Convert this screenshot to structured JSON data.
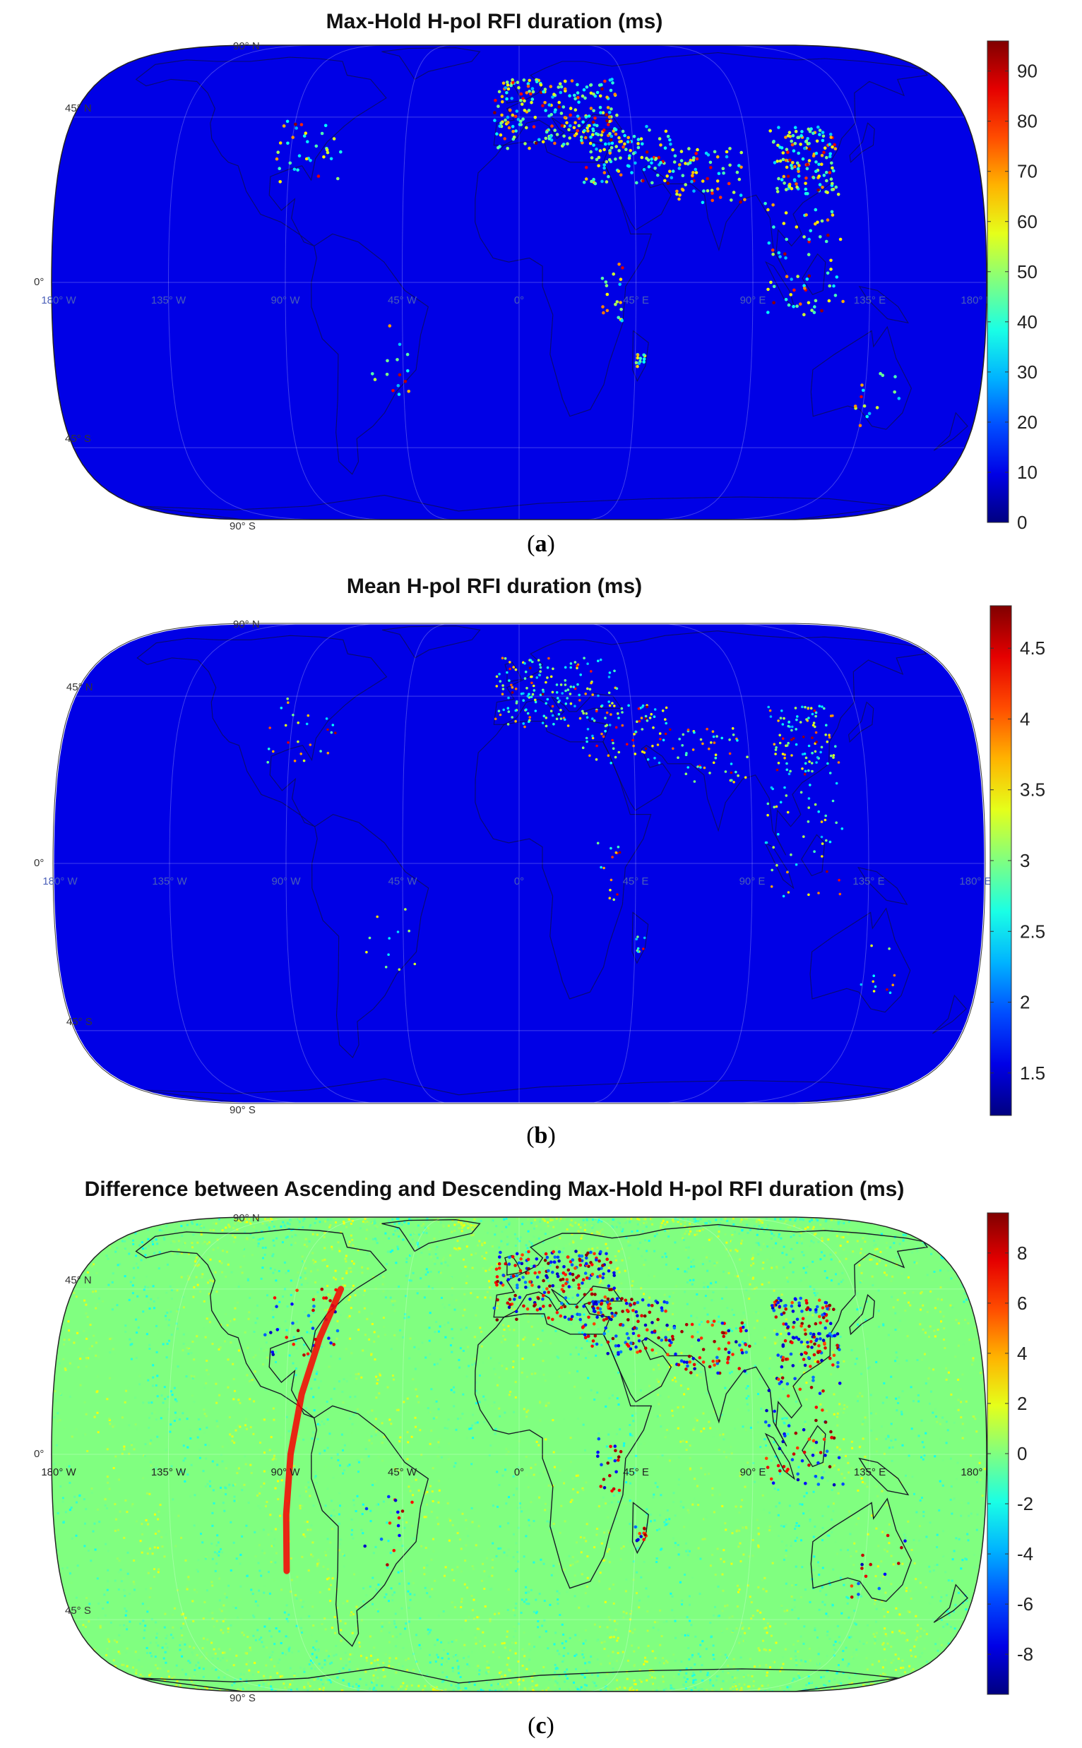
{
  "panels": [
    {
      "title": "Max-Hold H-pol RFI duration (ms)",
      "caption_letter": "a",
      "colormap": "jet",
      "colorbar": {
        "min": 0,
        "max": 96,
        "ticks": [
          "0",
          "10",
          "20",
          "30",
          "40",
          "50",
          "60",
          "70",
          "80",
          "90"
        ],
        "tick_values": [
          0,
          10,
          20,
          30,
          40,
          50,
          60,
          70,
          80,
          90
        ]
      },
      "lat_labels": [
        "90° N",
        "45° N",
        "0°",
        "45° S",
        "90° S"
      ],
      "lon_labels": [
        "180° W",
        "135° W",
        "90° W",
        "45° W",
        "0°",
        "45° E",
        "90° E",
        "135° E",
        "180° E"
      ]
    },
    {
      "title": "Mean H-pol RFI duration (ms)",
      "caption_letter": "b",
      "colormap": "jet",
      "colorbar": {
        "min": 1.2,
        "max": 4.8,
        "ticks": [
          "1.5",
          "2",
          "2.5",
          "3",
          "3.5",
          "4",
          "4.5"
        ],
        "tick_values": [
          1.5,
          2,
          2.5,
          3,
          3.5,
          4,
          4.5
        ]
      },
      "lat_labels": [
        "90° N",
        "45° N",
        "0°",
        "45° S",
        "90° S"
      ],
      "lon_labels": [
        "180° W",
        "135° W",
        "90° W",
        "45° W",
        "0°",
        "45° E",
        "90° E",
        "135° E",
        "180° E"
      ]
    },
    {
      "title": "Difference between Ascending and Descending Max-Hold H-pol RFI duration (ms)",
      "caption_letter": "c",
      "colormap": "jet",
      "colorbar": {
        "min": -9.6,
        "max": 9.6,
        "ticks": [
          "8",
          "6",
          "4",
          "2",
          "0",
          "-2",
          "-4",
          "-6",
          "-8"
        ],
        "tick_values": [
          8,
          6,
          4,
          2,
          0,
          -2,
          -4,
          -6,
          -8
        ]
      },
      "lat_labels": [
        "90° N",
        "45° N",
        "0°",
        "45° S",
        "90° S"
      ],
      "lon_labels": [
        "180° W",
        "135° W",
        "90° W",
        "45° W",
        "0°",
        "45° E",
        "90° E",
        "135° E",
        "180° E"
      ]
    }
  ],
  "chart_data": [
    {
      "type": "heatmap",
      "title": "Max-Hold H-pol RFI duration (ms)",
      "projection": "Robinson world map",
      "colorbar_range": [
        0,
        96
      ],
      "colorbar_ticks": [
        0,
        10,
        20,
        30,
        40,
        50,
        60,
        70,
        80,
        90
      ],
      "background_value": 0,
      "hotspots": [
        "Europe",
        "Middle East",
        "South Asia",
        "East Asia",
        "Southeast Asia",
        "Madagascar"
      ]
    },
    {
      "type": "heatmap",
      "title": "Mean H-pol RFI duration (ms)",
      "projection": "Robinson world map",
      "colorbar_range": [
        1.2,
        4.8
      ],
      "colorbar_ticks": [
        1.5,
        2,
        2.5,
        3,
        3.5,
        4,
        4.5
      ],
      "background_value": 1.2,
      "hotspots": [
        "Europe",
        "Middle East",
        "East Asia",
        "Southeast Asia"
      ]
    },
    {
      "type": "heatmap",
      "title": "Difference between Ascending and Descending Max-Hold H-pol RFI duration (ms)",
      "projection": "Robinson world map",
      "colorbar_range": [
        -9.6,
        9.6
      ],
      "colorbar_ticks": [
        8,
        6,
        4,
        2,
        0,
        -2,
        -4,
        -6,
        -8
      ],
      "background_value": 0,
      "features": [
        "positive arc across Americas near 90° W",
        "mixed positive/negative in Europe, Middle East, East Asia"
      ]
    }
  ]
}
